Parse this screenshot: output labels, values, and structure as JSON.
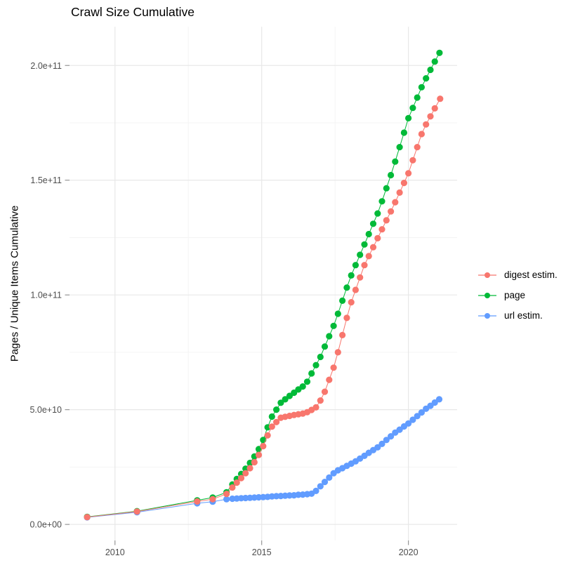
{
  "chart_data": {
    "type": "line",
    "title": "Crawl Size Cumulative",
    "xlabel": "",
    "ylabel": "Pages / Unique Items Cumulative",
    "legend_position": "right",
    "grid": "major and minor, light gray on white",
    "value_note": "points are [decimal_year, cumulative_count_in_billions]; 1 unit = 1e9 items",
    "xlim": [
      2008.45,
      2021.66
    ],
    "ylim_e9": [
      -7.0,
      216.9
    ],
    "x_ticks": [
      {
        "v": 2010,
        "label": "2010"
      },
      {
        "v": 2015,
        "label": "2015"
      },
      {
        "v": 2020,
        "label": "2020"
      }
    ],
    "x_minor": [
      2012.5,
      2017.5
    ],
    "y_ticks": [
      {
        "v": 0,
        "label": "0.0e+00"
      },
      {
        "v": 50,
        "label": "5.0e+10"
      },
      {
        "v": 100,
        "label": "1.0e+11"
      },
      {
        "v": 150,
        "label": "1.5e+11"
      },
      {
        "v": 200,
        "label": "2.0e+11"
      }
    ],
    "y_minor": [
      25,
      75,
      125,
      175
    ],
    "colors": {
      "digest": "#F8766D",
      "page": "#00BA38",
      "url": "#619CFF"
    },
    "draw_order": [
      2,
      1,
      0
    ],
    "series": [
      {
        "name": "digest estim.",
        "color": "#F8766D",
        "points": [
          [
            2009.05,
            3.2
          ],
          [
            2010.75,
            5.6
          ],
          [
            2012.8,
            10
          ],
          [
            2013.33,
            11
          ],
          [
            2013.8,
            13.3
          ],
          [
            2014,
            16.1
          ],
          [
            2014.15,
            18.2
          ],
          [
            2014.3,
            20.2
          ],
          [
            2014.45,
            22.3
          ],
          [
            2014.6,
            24.5
          ],
          [
            2014.75,
            27.1
          ],
          [
            2014.9,
            30.3
          ],
          [
            2015.05,
            34.1
          ],
          [
            2015.2,
            38.8
          ],
          [
            2015.35,
            42.6
          ],
          [
            2015.5,
            44.6
          ],
          [
            2015.65,
            46.5
          ],
          [
            2015.8,
            46.9
          ],
          [
            2015.95,
            47.3
          ],
          [
            2016.1,
            47.7
          ],
          [
            2016.25,
            48
          ],
          [
            2016.4,
            48.3
          ],
          [
            2016.55,
            48.9
          ],
          [
            2016.7,
            49.9
          ],
          [
            2016.85,
            51
          ],
          [
            2017,
            54
          ],
          [
            2017.15,
            57.8
          ],
          [
            2017.3,
            63
          ],
          [
            2017.45,
            68.3
          ],
          [
            2017.6,
            75
          ],
          [
            2017.75,
            82.5
          ],
          [
            2017.9,
            90
          ],
          [
            2018.05,
            96.8
          ],
          [
            2018.2,
            102.2
          ],
          [
            2018.35,
            107.6
          ],
          [
            2018.5,
            113
          ],
          [
            2018.65,
            116.9
          ],
          [
            2018.8,
            120.8
          ],
          [
            2018.95,
            124.7
          ],
          [
            2019.1,
            128.6
          ],
          [
            2019.25,
            132.5
          ],
          [
            2019.4,
            136.4
          ],
          [
            2019.55,
            140.4
          ],
          [
            2019.7,
            144.6
          ],
          [
            2019.85,
            148.8
          ],
          [
            2020,
            153
          ],
          [
            2020.15,
            158.7
          ],
          [
            2020.3,
            164.4
          ],
          [
            2020.45,
            170.1
          ],
          [
            2020.6,
            174.3
          ],
          [
            2020.75,
            177.8
          ],
          [
            2020.9,
            181.3
          ],
          [
            2021.08,
            185.5
          ]
        ]
      },
      {
        "name": "page",
        "color": "#00BA38",
        "points": [
          [
            2009.05,
            3.3
          ],
          [
            2010.75,
            5.8
          ],
          [
            2012.8,
            10.5
          ],
          [
            2013.33,
            11.7
          ],
          [
            2013.8,
            14
          ],
          [
            2014,
            17.4
          ],
          [
            2014.15,
            19.8
          ],
          [
            2014.3,
            22
          ],
          [
            2014.45,
            24.3
          ],
          [
            2014.6,
            26.8
          ],
          [
            2014.75,
            29.6
          ],
          [
            2014.9,
            32.8
          ],
          [
            2015.05,
            36.8
          ],
          [
            2015.2,
            42.3
          ],
          [
            2015.35,
            47
          ],
          [
            2015.5,
            50
          ],
          [
            2015.65,
            53
          ],
          [
            2015.8,
            54.5
          ],
          [
            2015.95,
            56
          ],
          [
            2016.1,
            57.4
          ],
          [
            2016.25,
            58.8
          ],
          [
            2016.4,
            60.1
          ],
          [
            2016.55,
            62.2
          ],
          [
            2016.7,
            65.8
          ],
          [
            2016.85,
            69.4
          ],
          [
            2017,
            73
          ],
          [
            2017.15,
            77.5
          ],
          [
            2017.3,
            82
          ],
          [
            2017.45,
            86.5
          ],
          [
            2017.6,
            91.8
          ],
          [
            2017.75,
            97.5
          ],
          [
            2017.9,
            103.2
          ],
          [
            2018.05,
            108.5
          ],
          [
            2018.2,
            113
          ],
          [
            2018.35,
            117.5
          ],
          [
            2018.5,
            122
          ],
          [
            2018.65,
            126.5
          ],
          [
            2018.8,
            131
          ],
          [
            2018.95,
            135.5
          ],
          [
            2019.1,
            140.8
          ],
          [
            2019.25,
            146.5
          ],
          [
            2019.4,
            152.2
          ],
          [
            2019.55,
            158.1
          ],
          [
            2019.7,
            164.4
          ],
          [
            2019.85,
            170.7
          ],
          [
            2020,
            177
          ],
          [
            2020.15,
            181.5
          ],
          [
            2020.3,
            186
          ],
          [
            2020.45,
            190.5
          ],
          [
            2020.6,
            194.4
          ],
          [
            2020.75,
            198.1
          ],
          [
            2020.9,
            201.7
          ],
          [
            2021.06,
            205.5
          ]
        ]
      },
      {
        "name": "url estim.",
        "color": "#619CFF",
        "points": [
          [
            2009.05,
            3.1
          ],
          [
            2010.75,
            5.3
          ],
          [
            2012.8,
            9.2
          ],
          [
            2013.33,
            9.9
          ],
          [
            2013.8,
            11
          ],
          [
            2014,
            11.2
          ],
          [
            2014.15,
            11.3
          ],
          [
            2014.3,
            11.4
          ],
          [
            2014.45,
            11.5
          ],
          [
            2014.6,
            11.6
          ],
          [
            2014.75,
            11.7
          ],
          [
            2014.9,
            11.8
          ],
          [
            2015.05,
            11.9
          ],
          [
            2015.2,
            12
          ],
          [
            2015.35,
            12.2
          ],
          [
            2015.5,
            12.3
          ],
          [
            2015.65,
            12.4
          ],
          [
            2015.8,
            12.5
          ],
          [
            2015.95,
            12.6
          ],
          [
            2016.1,
            12.7
          ],
          [
            2016.25,
            12.9
          ],
          [
            2016.4,
            13
          ],
          [
            2016.55,
            13.2
          ],
          [
            2016.7,
            13.4
          ],
          [
            2016.85,
            14.6
          ],
          [
            2017,
            16.6
          ],
          [
            2017.15,
            18.5
          ],
          [
            2017.3,
            20.4
          ],
          [
            2017.45,
            22.3
          ],
          [
            2017.6,
            23.6
          ],
          [
            2017.75,
            24.5
          ],
          [
            2017.9,
            25.5
          ],
          [
            2018.05,
            26.5
          ],
          [
            2018.2,
            27.5
          ],
          [
            2018.35,
            28.7
          ],
          [
            2018.5,
            29.9
          ],
          [
            2018.65,
            31.2
          ],
          [
            2018.8,
            32.4
          ],
          [
            2018.95,
            33.6
          ],
          [
            2019.1,
            35.1
          ],
          [
            2019.25,
            36.8
          ],
          [
            2019.4,
            38.4
          ],
          [
            2019.55,
            40
          ],
          [
            2019.7,
            41.3
          ],
          [
            2019.85,
            42.7
          ],
          [
            2020,
            44
          ],
          [
            2020.15,
            45.6
          ],
          [
            2020.3,
            47.2
          ],
          [
            2020.45,
            48.8
          ],
          [
            2020.6,
            50.4
          ],
          [
            2020.75,
            51.7
          ],
          [
            2020.9,
            53.1
          ],
          [
            2021.05,
            54.5
          ]
        ]
      }
    ]
  }
}
